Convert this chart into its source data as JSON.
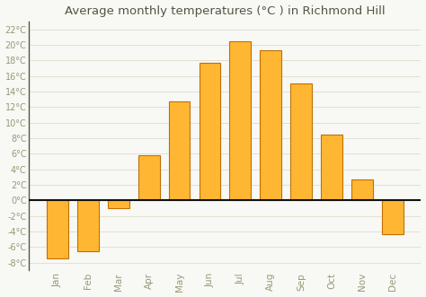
{
  "months": [
    "Jan",
    "Feb",
    "Mar",
    "Apr",
    "May",
    "Jun",
    "Jul",
    "Aug",
    "Sep",
    "Oct",
    "Nov",
    "Dec"
  ],
  "values": [
    -7.5,
    -6.5,
    -1.0,
    5.8,
    12.7,
    17.7,
    20.4,
    19.3,
    15.0,
    8.5,
    2.7,
    -4.3
  ],
  "bar_color_light": "#FFB733",
  "bar_color_dark": "#E08800",
  "bar_edge_color": "#C07000",
  "title": "Average monthly temperatures (°C ) in Richmond Hill",
  "title_fontsize": 9.5,
  "ylim": [
    -9,
    23
  ],
  "yticks": [
    -8,
    -6,
    -4,
    -2,
    0,
    2,
    4,
    6,
    8,
    10,
    12,
    14,
    16,
    18,
    20,
    22
  ],
  "background_color": "#f8f8f5",
  "grid_color": "#ddddcc",
  "zero_line_color": "#111111",
  "left_spine_color": "#555544",
  "tick_label_color": "#999977",
  "title_color": "#555544"
}
